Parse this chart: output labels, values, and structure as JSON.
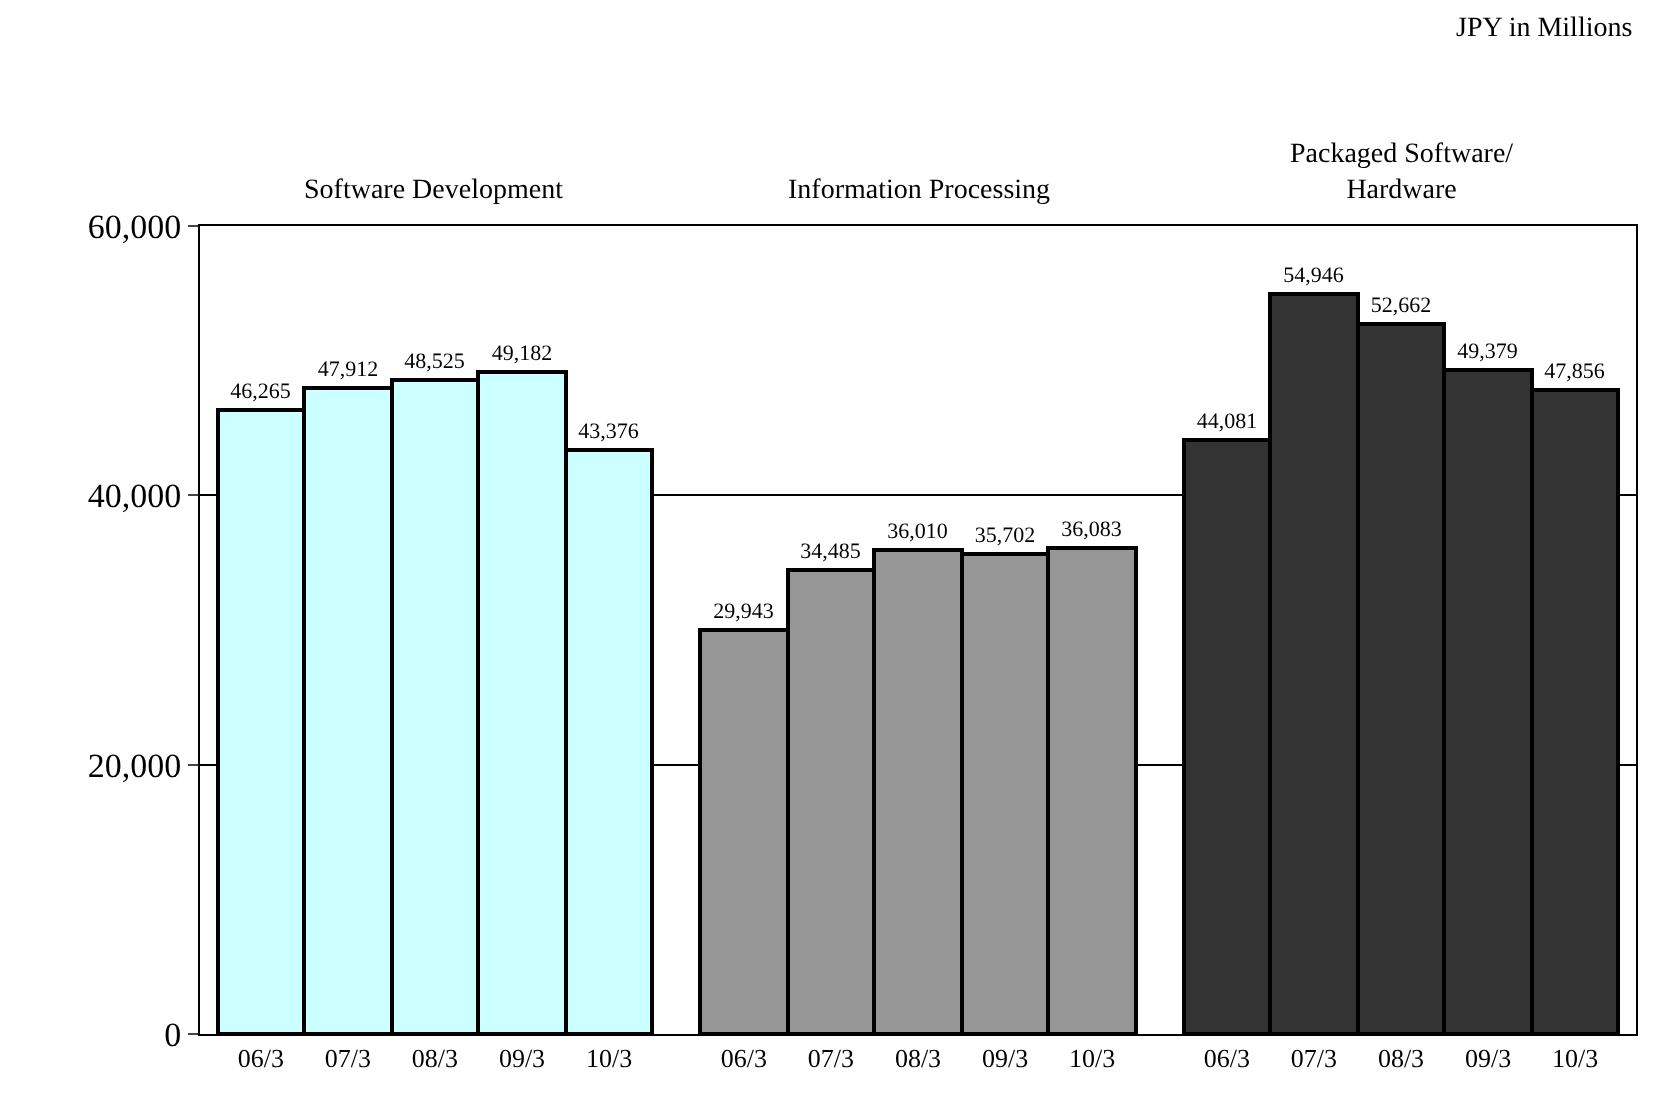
{
  "chart_data": {
    "type": "bar",
    "categories": [
      "06/3",
      "07/3",
      "08/3",
      "09/3",
      "10/3",
      "06/3",
      "07/3",
      "08/3",
      "09/3",
      "10/3",
      "06/3",
      "07/3",
      "08/3",
      "09/3",
      "10/3"
    ],
    "series": [
      {
        "color": "#ccffff",
        "values": [
          46265,
          47912,
          48525,
          49182,
          43376,
          null,
          null,
          null,
          null,
          null,
          null,
          null,
          null,
          null,
          null
        ],
        "value_labels": [
          "46,265",
          "47,912",
          "48,525",
          "49,182",
          "43,376",
          null,
          null,
          null,
          null,
          null,
          null,
          null,
          null,
          null,
          null
        ]
      },
      {
        "color": "#969696",
        "values": [
          null,
          null,
          null,
          null,
          null,
          29943,
          34485,
          36010,
          35702,
          36083,
          null,
          null,
          null,
          null,
          null
        ],
        "value_labels": [
          null,
          null,
          null,
          null,
          null,
          "29,943",
          "34,485",
          "36,010",
          "35,702",
          "36,083",
          null,
          null,
          null,
          null,
          null
        ]
      },
      {
        "color": "#333333",
        "values": [
          null,
          null,
          null,
          null,
          null,
          null,
          null,
          null,
          null,
          null,
          44081,
          54946,
          52662,
          49379,
          47856
        ],
        "value_labels": [
          null,
          null,
          null,
          null,
          null,
          null,
          null,
          null,
          null,
          null,
          "44,081",
          "54,946",
          "52,662",
          "49,379",
          "47,856"
        ]
      }
    ],
    "ylim": [
      0,
      60000
    ],
    "yticks": [
      0,
      {
        "value": 20000,
        "label": "20,000"
      },
      {
        "value": 40000,
        "label": "40,000"
      },
      {
        "value": 60000,
        "label": "60,000"
      }
    ],
    "grid": "y",
    "legend": false,
    "annotations": [
      "Software Development",
      "Information Processing",
      "Packaged Software/\nHardware",
      "JPY in Millions"
    ]
  }
}
